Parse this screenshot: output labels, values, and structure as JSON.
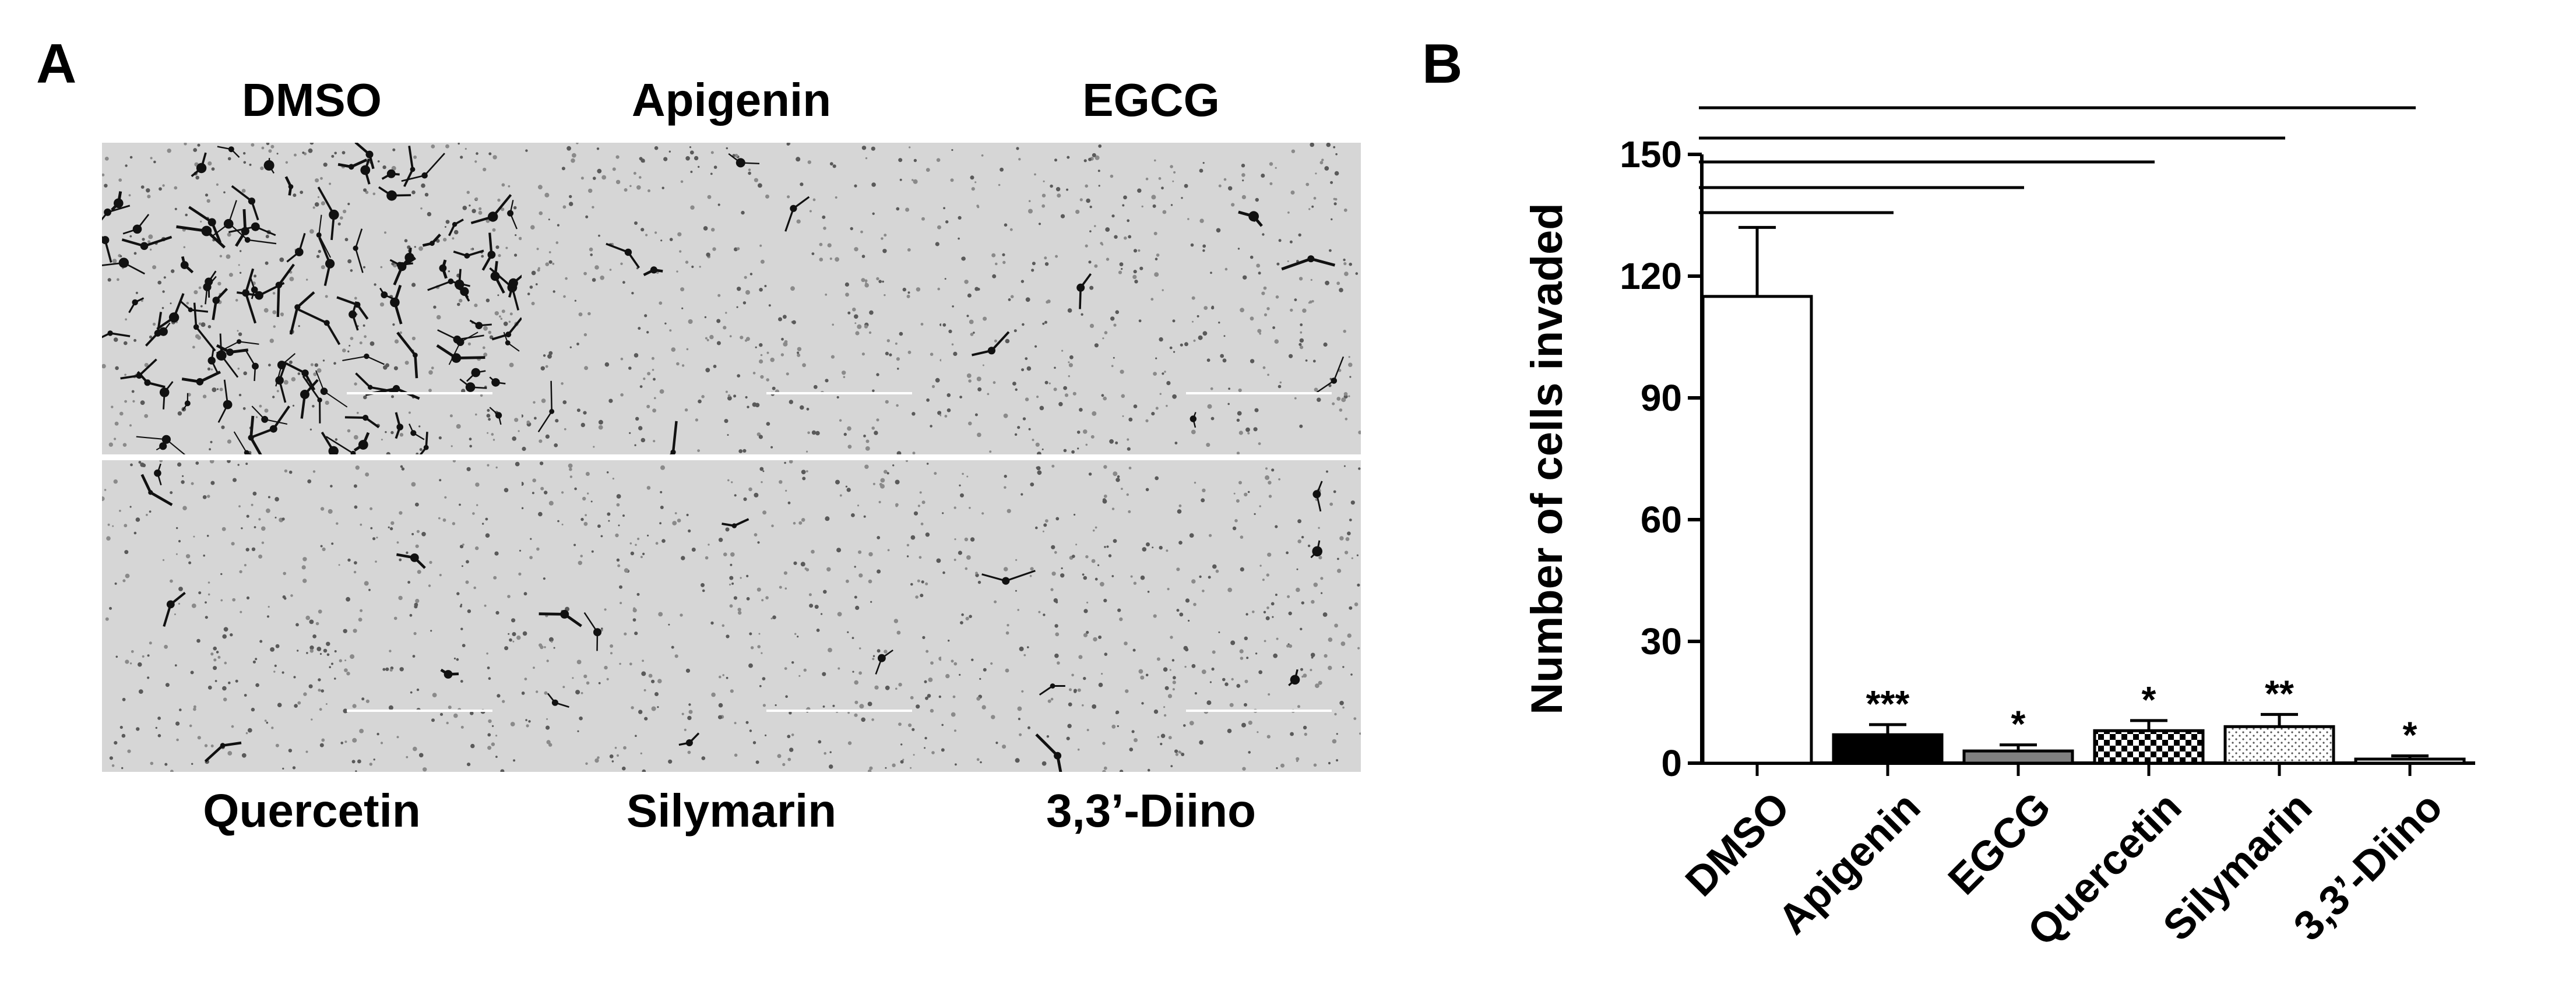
{
  "panels": {
    "A": {
      "letter": "A"
    },
    "B": {
      "letter": "B"
    }
  },
  "micrographs": [
    {
      "label": "DMSO",
      "density": "high"
    },
    {
      "label": "Apigenin",
      "density": "low"
    },
    {
      "label": "EGCG",
      "density": "low"
    },
    {
      "label": "Quercetin",
      "density": "low"
    },
    {
      "label": "Silymarin",
      "density": "low"
    },
    {
      "label": "3,3’-Diino",
      "density": "low"
    }
  ],
  "chart_data": {
    "type": "bar",
    "categories": [
      "DMSO",
      "Apigenin",
      "EGCG",
      "Quercetin",
      "Silymarin",
      "3,3’-Diino"
    ],
    "values": [
      115,
      7,
      3,
      8,
      9,
      1
    ],
    "errors": [
      17,
      2.5,
      1.5,
      2.5,
      3,
      0.8
    ],
    "significance": [
      "",
      "***",
      "*",
      "*",
      "**",
      "*"
    ],
    "fills": [
      "white",
      "black",
      "gray",
      "checker",
      "dots",
      "white"
    ],
    "ylabel": "Number of cells invaded",
    "xlabel": "",
    "ylim": [
      0,
      150
    ],
    "yticks": [
      0,
      30,
      60,
      90,
      120,
      150
    ],
    "comparison_brackets": 5,
    "grid": false
  }
}
